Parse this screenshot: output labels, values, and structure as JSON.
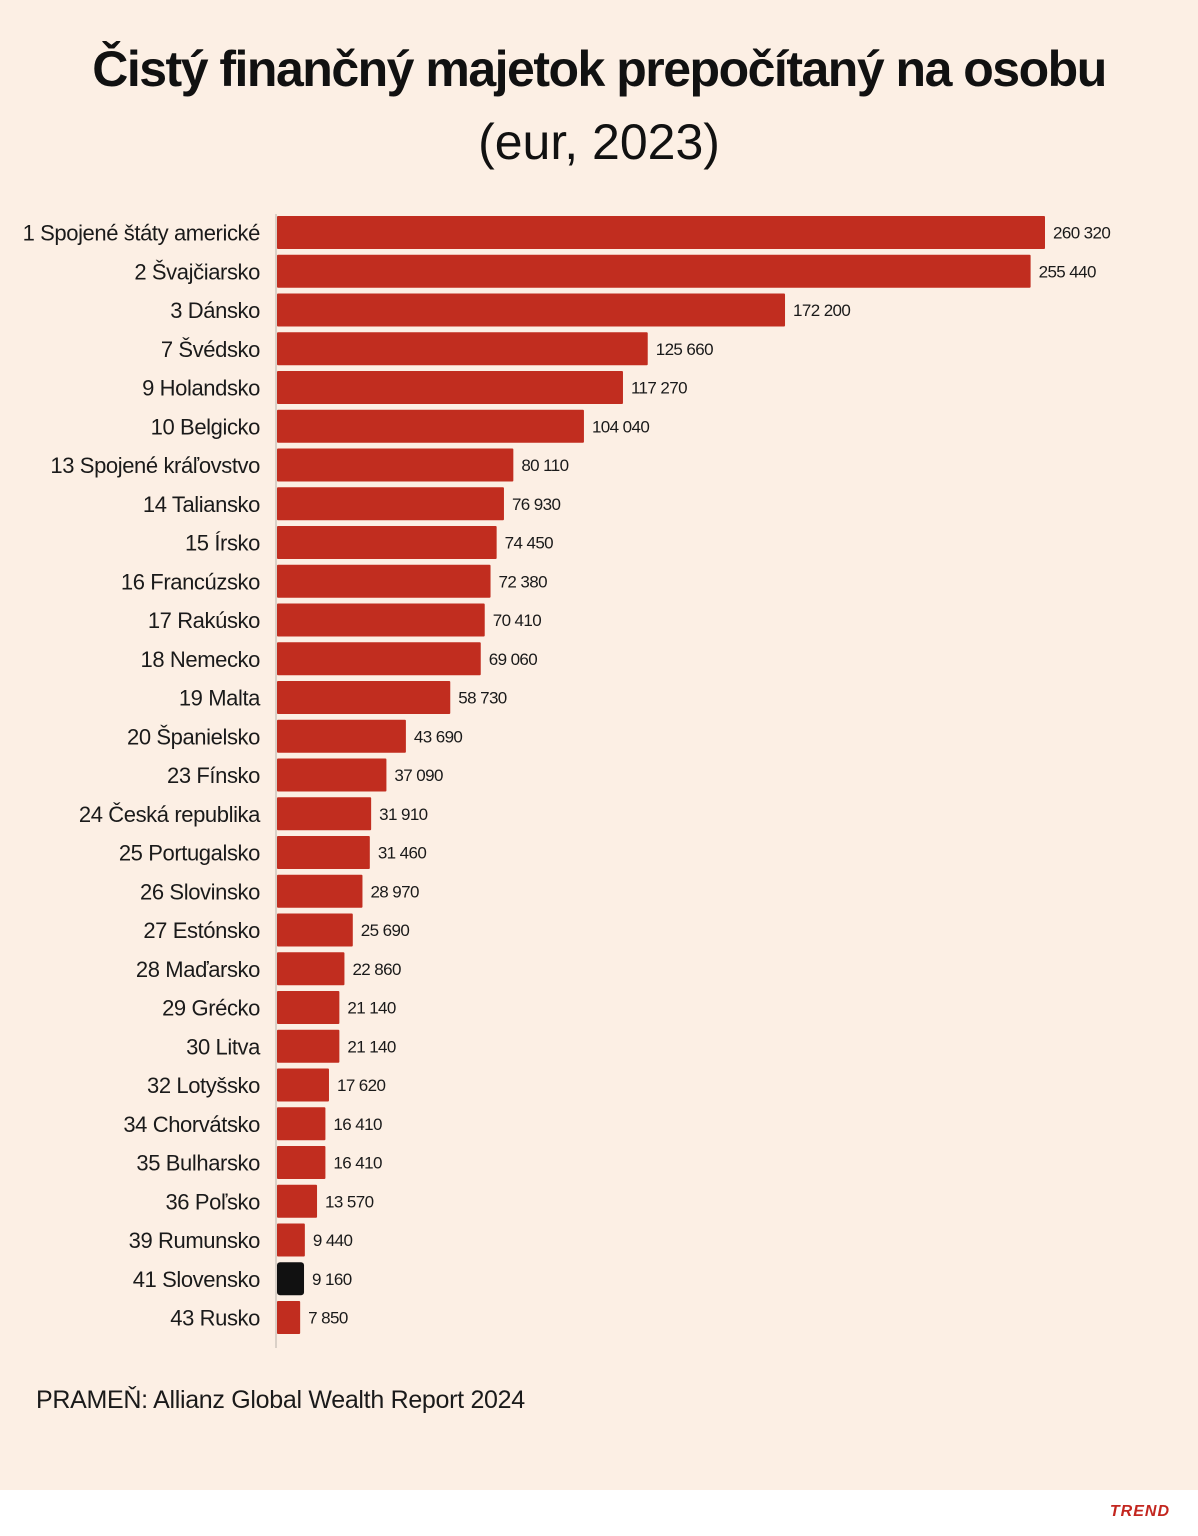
{
  "title": "Čistý finančný majetok prepočítaný na osobu",
  "subtitle": "(eur, 2023)",
  "source": "PRAMEŇ: Allianz Global Wealth Report 2024",
  "brand": "TREND",
  "colors": {
    "background": "#fcefe4",
    "bar": "#c12d1f",
    "highlight_bar": "#111111",
    "axis": "#cfc6bd"
  },
  "chart_data": {
    "type": "bar",
    "orientation": "horizontal",
    "title": "Čistý finančný majetok prepočítaný na osobu",
    "subtitle": "(eur, 2023)",
    "categories": [
      "1 Spojené štáty americké",
      "2 Švajčiarsko",
      "3 Dánsko",
      "7 Švédsko",
      "9 Holandsko",
      "10 Belgicko",
      "13 Spojené kráľovstvo",
      "14 Taliansko",
      "15 Írsko",
      "16 Francúzsko",
      "17 Rakúsko",
      "18 Nemecko",
      "19 Malta",
      "20 Španielsko",
      "23 Fínsko",
      "24 Česká republika",
      "25 Portugalsko",
      "26 Slovinsko",
      "27 Estónsko",
      "28 Maďarsko",
      "29 Grécko",
      "30 Litva",
      "32 Lotyšsko",
      "34 Chorvátsko",
      "35 Bulharsko",
      "36 Poľsko",
      "39 Rumunsko",
      "41 Slovensko",
      "43 Rusko"
    ],
    "values": [
      260320,
      255440,
      172200,
      125660,
      117270,
      104040,
      80110,
      76930,
      74450,
      72380,
      70410,
      69060,
      58730,
      43690,
      37090,
      31910,
      31460,
      28970,
      25690,
      22860,
      21140,
      21140,
      17620,
      16410,
      16410,
      13570,
      9440,
      9160,
      7850
    ],
    "value_labels": [
      "260 320",
      "255 440",
      "172 200",
      "125 660",
      "117 270",
      "104 040",
      "80 110",
      "76 930",
      "74 450",
      "72 380",
      "70 410",
      "69 060",
      "58 730",
      "43 690",
      "37 090",
      "31 910",
      "31 460",
      "28 970",
      "25 690",
      "22 860",
      "21 140",
      "21 140",
      "17 620",
      "16 410",
      "16 410",
      "13 570",
      "9 440",
      "9 160",
      "7 850"
    ],
    "highlight": "41 Slovensko",
    "xlim": [
      0,
      260320
    ],
    "grid": false,
    "legend": "none"
  }
}
